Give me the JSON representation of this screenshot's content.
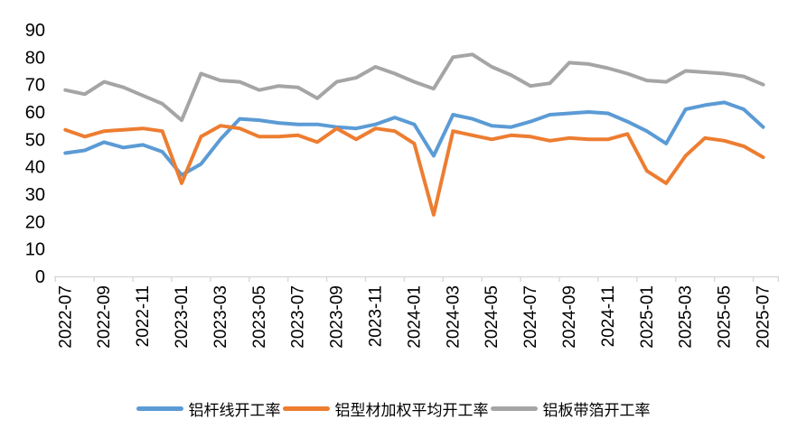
{
  "chart_data": {
    "type": "line",
    "title": "",
    "xlabel": "",
    "ylabel": "",
    "ylim": [
      0,
      90
    ],
    "y_ticks": [
      0,
      10,
      20,
      30,
      40,
      50,
      60,
      70,
      80,
      90
    ],
    "grid": false,
    "legend_position": "bottom",
    "x": [
      "2022-07",
      "2022-08",
      "2022-09",
      "2022-10",
      "2022-11",
      "2022-12",
      "2023-01",
      "2023-02",
      "2023-03",
      "2023-04",
      "2023-05",
      "2023-06",
      "2023-07",
      "2023-08",
      "2023-09",
      "2023-10",
      "2023-11",
      "2023-12",
      "2024-01",
      "2024-02",
      "2024-03",
      "2024-04",
      "2024-05",
      "2024-06",
      "2024-07",
      "2024-08",
      "2024-09",
      "2024-10",
      "2024-11",
      "2024-12",
      "2025-01",
      "2025-02",
      "2025-03",
      "2025-04",
      "2025-05",
      "2025-06",
      "2025-07"
    ],
    "x_tick_labels": [
      "2022-07",
      "2022-09",
      "2022-11",
      "2023-01",
      "2023-03",
      "2023-05",
      "2023-07",
      "2023-09",
      "2023-11",
      "2024-01",
      "2024-03",
      "2024-05",
      "2024-07",
      "2024-09",
      "2024-11",
      "2025-01",
      "2025-03",
      "2025-05",
      "2025-07"
    ],
    "series": [
      {
        "name": "铝杆线开工率",
        "color": "#5B9BD5",
        "values": [
          45,
          46,
          49,
          47,
          48,
          45.5,
          37,
          41,
          50,
          57.5,
          57,
          56,
          55.5,
          55.5,
          54.5,
          54,
          55.5,
          58,
          55.5,
          44,
          59,
          57.5,
          55,
          54.5,
          56.5,
          59,
          59.5,
          60,
          59.5,
          56.5,
          53,
          48.5,
          61,
          62.5,
          63.5,
          61,
          54.5
        ]
      },
      {
        "name": "铝型材加权平均开工率",
        "color": "#ED7D31",
        "values": [
          53.5,
          51,
          53,
          53.5,
          54,
          53,
          34,
          51,
          55,
          54,
          51,
          51,
          51.5,
          49,
          54,
          50,
          54,
          53,
          48.5,
          22.5,
          53,
          51.5,
          50,
          51.5,
          51,
          49.5,
          50.5,
          50,
          50,
          52,
          38.5,
          34,
          44,
          50.5,
          49.5,
          47.5,
          43.5
        ]
      },
      {
        "name": "铝板带箔开工率",
        "color": "#A5A5A5",
        "values": [
          68,
          66.5,
          71,
          69,
          66,
          63,
          57,
          74,
          71.5,
          71,
          68,
          69.5,
          69,
          65,
          71,
          72.5,
          76.5,
          74,
          71,
          68.5,
          80,
          81,
          76.5,
          73.5,
          69.5,
          70.5,
          78,
          77.5,
          76,
          74,
          71.5,
          71,
          75,
          74.5,
          74,
          73,
          70
        ]
      }
    ],
    "axis_color": "#D9D9D9",
    "text_color": "#000000",
    "background_color": "#FFFFFF"
  }
}
